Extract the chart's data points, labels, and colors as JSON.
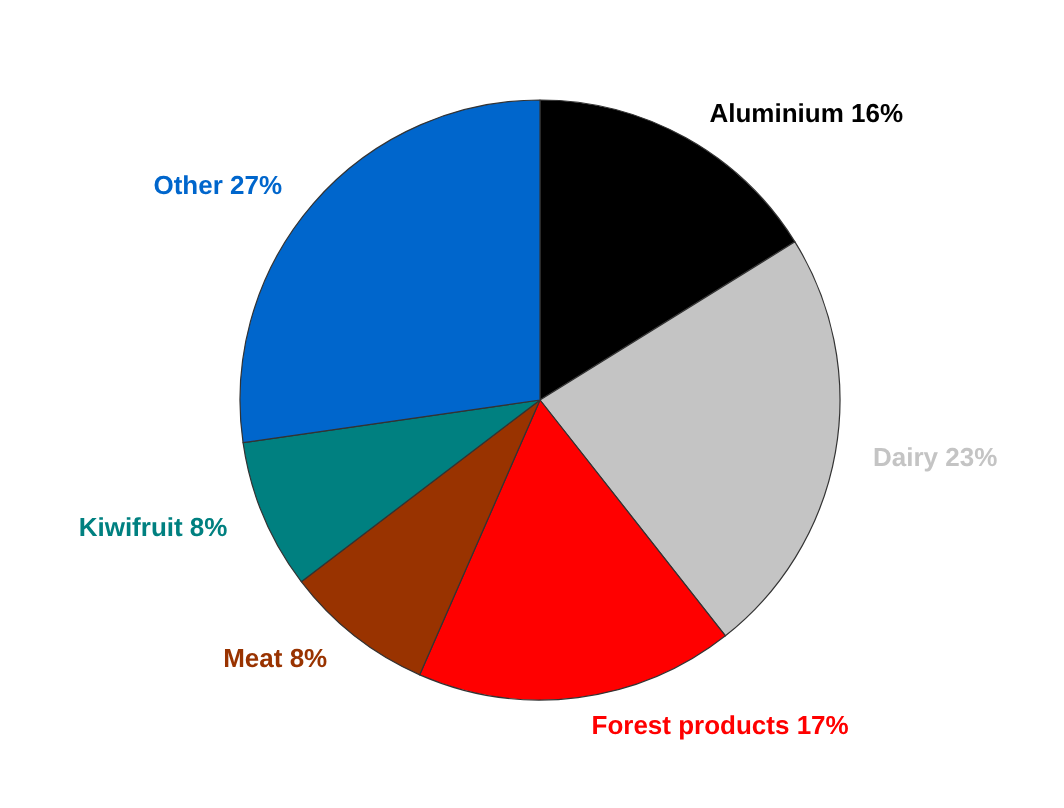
{
  "chart_data": {
    "type": "pie",
    "categories": [
      "Aluminium",
      "Dairy",
      "Forest products",
      "Meat",
      "Kiwifruit",
      "Other"
    ],
    "values": [
      16,
      23,
      17,
      8,
      8,
      27
    ],
    "value_labels": [
      "16%",
      "23%",
      "17%",
      "8%",
      "8%",
      "27%"
    ],
    "colors": [
      "#000000",
      "#c4c4c4",
      "#ff0000",
      "#993300",
      "#008080",
      "#0066cc"
    ],
    "legend": false
  }
}
